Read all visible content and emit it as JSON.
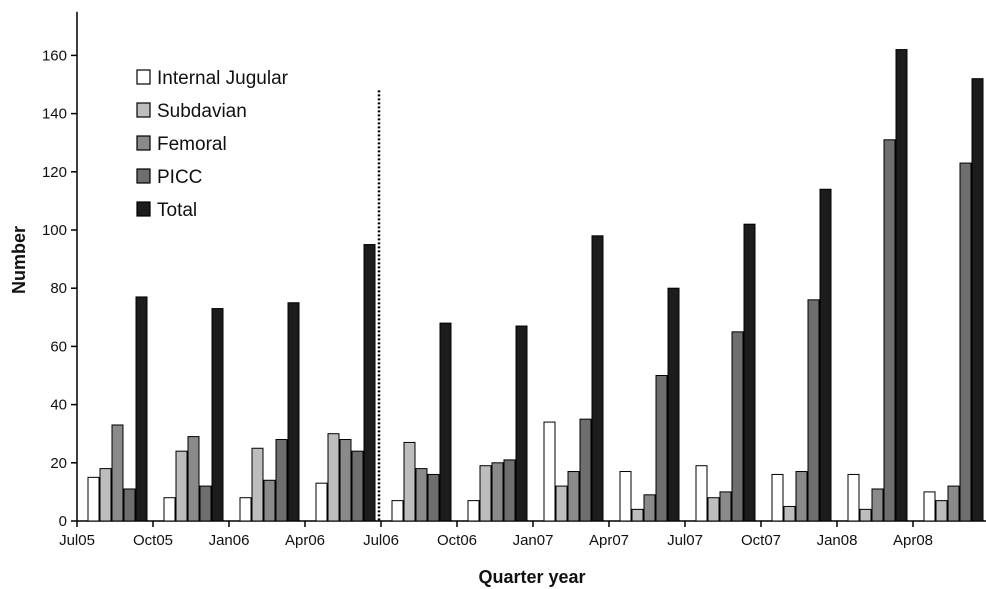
{
  "chart_data": {
    "type": "bar",
    "xlabel": "Quarter year",
    "ylabel": "Number",
    "ylim": [
      0,
      175
    ],
    "yticks": [
      0,
      20,
      40,
      60,
      80,
      100,
      120,
      140,
      160
    ],
    "categories": [
      "Jul05",
      "Oct05",
      "Jan06",
      "Apr06",
      "Jul06",
      "Oct06",
      "Jan07",
      "Apr07",
      "Jul07",
      "Oct07",
      "Jan08",
      "Apr08"
    ],
    "series": [
      {
        "name": "Internal Jugular",
        "color": "#ffffff",
        "values": [
          15,
          8,
          8,
          13,
          7,
          7,
          34,
          17,
          19,
          16,
          16,
          10
        ]
      },
      {
        "name": "Subdavian",
        "color": "#bdbdbd",
        "values": [
          18,
          24,
          25,
          30,
          27,
          19,
          12,
          4,
          8,
          5,
          4,
          7
        ]
      },
      {
        "name": "Femoral",
        "color": "#8a8a8a",
        "values": [
          33,
          29,
          14,
          28,
          18,
          20,
          17,
          9,
          10,
          17,
          11,
          12
        ]
      },
      {
        "name": "PICC",
        "color": "#6e6e6e",
        "values": [
          11,
          12,
          28,
          24,
          16,
          21,
          35,
          50,
          65,
          76,
          131,
          123
        ]
      },
      {
        "name": "Total",
        "color": "#1c1c1c",
        "values": [
          77,
          73,
          75,
          95,
          68,
          67,
          98,
          80,
          102,
          114,
          162,
          152
        ]
      }
    ],
    "divider_after_category": "Apr06",
    "legend_position": "top-left",
    "grid": false
  }
}
